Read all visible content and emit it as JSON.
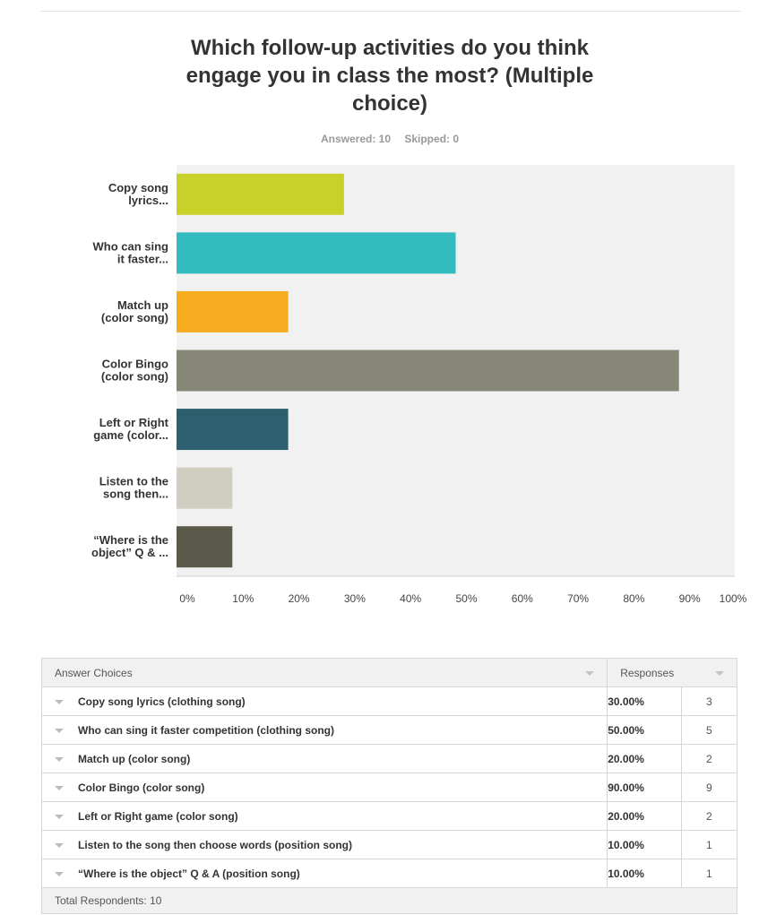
{
  "title_lines": [
    "Which follow-up activities do you think",
    "engage you in class the most? (Multiple",
    "choice)"
  ],
  "answered": "Answered: 10",
  "skipped": "Skipped: 0",
  "chart_data": {
    "type": "bar",
    "orientation": "horizontal",
    "categories": [
      [
        "Copy song",
        "lyrics..."
      ],
      [
        "Who can sing",
        "it faster..."
      ],
      [
        "Match up",
        "(color song)"
      ],
      [
        "Color Bingo",
        "(color song)"
      ],
      [
        "Left or Right",
        "game (color..."
      ],
      [
        "Listen to the",
        "song then..."
      ],
      [
        "“Where is the",
        "object” Q & ..."
      ]
    ],
    "values": [
      30,
      50,
      20,
      90,
      20,
      10,
      10
    ],
    "colors": [
      "#c8d12a",
      "#33bcbf",
      "#f5ad1f",
      "#878777",
      "#2d5f6e",
      "#cfcec1",
      "#5a594a"
    ],
    "xlim": [
      0,
      100
    ],
    "ticks": [
      "0%",
      "10%",
      "20%",
      "30%",
      "40%",
      "50%",
      "60%",
      "70%",
      "80%",
      "90%",
      "100%"
    ],
    "grid": false,
    "background": "#f1f1f1"
  },
  "table": {
    "header_choices": "Answer Choices",
    "header_responses": "Responses",
    "rows": [
      {
        "choice": "Copy song lyrics (clothing song)",
        "pct": "30.00%",
        "count": "3"
      },
      {
        "choice": "Who can sing it faster competition (clothing song)",
        "pct": "50.00%",
        "count": "5"
      },
      {
        "choice": "Match up (color song)",
        "pct": "20.00%",
        "count": "2"
      },
      {
        "choice": "Color Bingo (color song)",
        "pct": "90.00%",
        "count": "9"
      },
      {
        "choice": "Left or Right game (color song)",
        "pct": "20.00%",
        "count": "2"
      },
      {
        "choice": "Listen to the song then choose words (position song)",
        "pct": "10.00%",
        "count": "1"
      },
      {
        "choice": "“Where is the object” Q & A (position song)",
        "pct": "10.00%",
        "count": "1"
      }
    ],
    "footer": "Total Respondents: 10"
  }
}
